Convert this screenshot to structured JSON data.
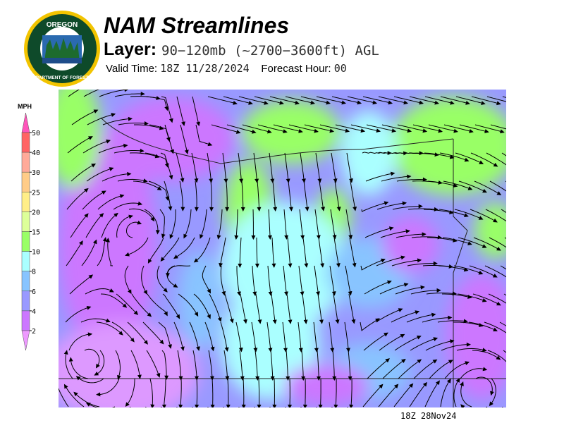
{
  "logo": {
    "text_top": "OREGON",
    "text_bottom": "DEPARTMENT OF FORESTRY"
  },
  "header": {
    "title": "NAM Streamlines",
    "layer_label": "Layer:",
    "layer_value": "90−120mb (~2700−3600ft) AGL",
    "valid_label": "Valid Time:",
    "valid_value": "18Z 11/28/2024",
    "forecast_label": "Forecast Hour:",
    "forecast_value": "00"
  },
  "legend": {
    "unit": "MPH",
    "top_arrow_color": "#ff55bb",
    "bottom_arrow_color": "#ee99ff",
    "bins": [
      {
        "label": "50",
        "color": "#ff6464"
      },
      {
        "label": "40",
        "color": "#ffaa99"
      },
      {
        "label": "30",
        "color": "#ffcc88"
      },
      {
        "label": "25",
        "color": "#ffee88"
      },
      {
        "label": "20",
        "color": "#ddff99"
      },
      {
        "label": "15",
        "color": "#99ff66"
      },
      {
        "label": "10",
        "color": "#aaffff"
      },
      {
        "label": "8",
        "color": "#88c4ff"
      },
      {
        "label": "6",
        "color": "#9999ff"
      },
      {
        "label": "4",
        "color": "#cc77ff"
      },
      {
        "label": "2",
        "color": ""
      }
    ]
  },
  "map": {
    "stamp": "18Z 28Nov24"
  }
}
